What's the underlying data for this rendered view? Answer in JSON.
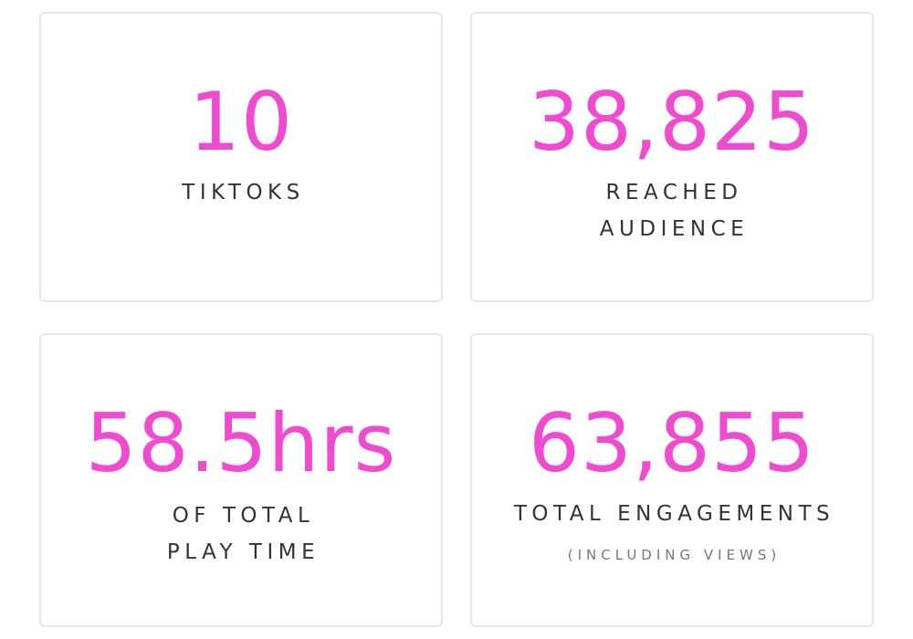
{
  "stats": [
    {
      "value": "10",
      "label_lines": [
        "TIKTOKS"
      ]
    },
    {
      "value": "38,825",
      "label_lines": [
        "REACHED",
        "AUDIENCE"
      ]
    },
    {
      "value": "58.5hrs",
      "label_lines": [
        "OF TOTAL",
        "PLAY TIME"
      ]
    },
    {
      "value": "63,855",
      "label_lines": [
        "TOTAL ENGAGEMENTS"
      ],
      "sublabel": "(INCLUDING VIEWS)"
    }
  ],
  "colors": {
    "accent": "#f04ad0",
    "label": "#333333",
    "sublabel": "#777777",
    "card_border": "#e6e6e6"
  }
}
